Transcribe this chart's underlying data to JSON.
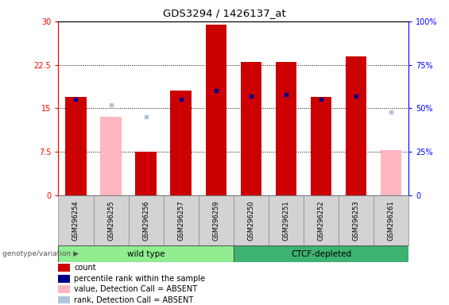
{
  "title": "GDS3294 / 1426137_at",
  "samples": [
    "GSM296254",
    "GSM296255",
    "GSM296256",
    "GSM296257",
    "GSM296259",
    "GSM296250",
    "GSM296251",
    "GSM296252",
    "GSM296253",
    "GSM296261"
  ],
  "count_values": [
    17.0,
    null,
    7.5,
    18.0,
    29.5,
    23.0,
    23.0,
    17.0,
    24.0,
    null
  ],
  "count_absent": [
    null,
    13.5,
    null,
    null,
    null,
    null,
    null,
    null,
    null,
    7.8
  ],
  "percentile_values": [
    55,
    null,
    null,
    55,
    60,
    57,
    58,
    55,
    57,
    null
  ],
  "percentile_absent": [
    null,
    52,
    45,
    null,
    null,
    null,
    null,
    null,
    null,
    48
  ],
  "ylim_left": [
    0,
    30
  ],
  "ylim_right": [
    0,
    100
  ],
  "yticks_left": [
    0,
    7.5,
    15.0,
    22.5,
    30
  ],
  "ytick_labels_left": [
    "0",
    "7.5",
    "15",
    "22.5",
    "30"
  ],
  "yticks_right": [
    0,
    25,
    50,
    75,
    100
  ],
  "ytick_labels_right": [
    "0",
    "25%",
    "50%",
    "75%",
    "100%"
  ],
  "bar_width": 0.6,
  "count_color": "#CC0000",
  "count_absent_color": "#FFB6C1",
  "percentile_color": "#00008B",
  "percentile_absent_color": "#B0C4DE",
  "group1_label": "wild type",
  "group2_label": "CTCF-depleted",
  "group1_color": "#90EE90",
  "group2_color": "#3CB371",
  "group1_indices": [
    0,
    4
  ],
  "group2_indices": [
    5,
    9
  ],
  "genotype_label": "genotype/variation",
  "legend_items": [
    {
      "label": "count",
      "color": "#CC0000"
    },
    {
      "label": "percentile rank within the sample",
      "color": "#00008B"
    },
    {
      "label": "value, Detection Call = ABSENT",
      "color": "#FFB6C1"
    },
    {
      "label": "rank, Detection Call = ABSENT",
      "color": "#B0C4DE"
    }
  ]
}
